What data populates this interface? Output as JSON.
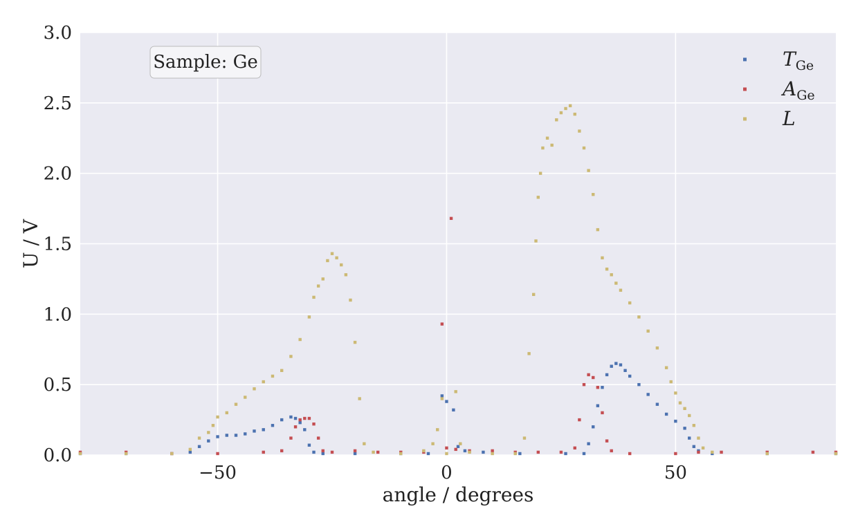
{
  "chart_data": {
    "type": "scatter",
    "title": "",
    "xlabel": "angle / degrees",
    "ylabel": "U / V",
    "xlim": [
      -80,
      85
    ],
    "ylim": [
      0,
      3.0
    ],
    "xticks": [
      -50,
      0,
      50
    ],
    "xtick_labels": [
      "−50",
      "0",
      "50"
    ],
    "yticks": [
      0,
      0.5,
      1.0,
      1.5,
      2.0,
      2.5,
      3.0
    ],
    "ytick_labels": [
      "0.0",
      "0.5",
      "1.0",
      "1.5",
      "2.0",
      "2.5",
      "3.0"
    ],
    "grid": true,
    "background": "#eaeaf2",
    "legend_position": "top-right",
    "annotation": "Sample: Ge",
    "series": [
      {
        "name": "T_Ge",
        "label_main": "T",
        "label_sub": "Ge",
        "color": "#4c72b0",
        "points": [
          [
            -80,
            0.01
          ],
          [
            -70,
            0.01
          ],
          [
            -60,
            0.01
          ],
          [
            -56,
            0.02
          ],
          [
            -54,
            0.06
          ],
          [
            -52,
            0.1
          ],
          [
            -50,
            0.13
          ],
          [
            -48,
            0.14
          ],
          [
            -46,
            0.14
          ],
          [
            -44,
            0.15
          ],
          [
            -42,
            0.17
          ],
          [
            -40,
            0.18
          ],
          [
            -38,
            0.21
          ],
          [
            -36,
            0.25
          ],
          [
            -34,
            0.27
          ],
          [
            -33,
            0.26
          ],
          [
            -32,
            0.23
          ],
          [
            -31,
            0.18
          ],
          [
            -30,
            0.07
          ],
          [
            -29,
            0.02
          ],
          [
            -27,
            0.01
          ],
          [
            -20,
            0.01
          ],
          [
            -10,
            0.01
          ],
          [
            -4,
            0.01
          ],
          [
            -1,
            0.42
          ],
          [
            0,
            0.38
          ],
          [
            1.5,
            0.32
          ],
          [
            2.5,
            0.06
          ],
          [
            4,
            0.03
          ],
          [
            8,
            0.02
          ],
          [
            16,
            0.01
          ],
          [
            26,
            0.01
          ],
          [
            30,
            0.01
          ],
          [
            31,
            0.08
          ],
          [
            32,
            0.2
          ],
          [
            33,
            0.35
          ],
          [
            34,
            0.48
          ],
          [
            35,
            0.57
          ],
          [
            36,
            0.63
          ],
          [
            37,
            0.65
          ],
          [
            38,
            0.64
          ],
          [
            39,
            0.6
          ],
          [
            40,
            0.56
          ],
          [
            42,
            0.5
          ],
          [
            44,
            0.43
          ],
          [
            46,
            0.36
          ],
          [
            48,
            0.29
          ],
          [
            50,
            0.24
          ],
          [
            52,
            0.19
          ],
          [
            53,
            0.12
          ],
          [
            54,
            0.06
          ],
          [
            55,
            0.03
          ],
          [
            58,
            0.01
          ],
          [
            70,
            0.01
          ],
          [
            85,
            0.01
          ]
        ]
      },
      {
        "name": "A_Ge",
        "label_main": "A",
        "label_sub": "Ge",
        "color": "#c44e52",
        "points": [
          [
            -80,
            0.02
          ],
          [
            -70,
            0.02
          ],
          [
            -60,
            0.01
          ],
          [
            -50,
            0.01
          ],
          [
            -40,
            0.02
          ],
          [
            -36,
            0.03
          ],
          [
            -34,
            0.12
          ],
          [
            -33,
            0.2
          ],
          [
            -32,
            0.25
          ],
          [
            -31,
            0.26
          ],
          [
            -30,
            0.26
          ],
          [
            -29,
            0.22
          ],
          [
            -28,
            0.12
          ],
          [
            -27,
            0.03
          ],
          [
            -25,
            0.02
          ],
          [
            -20,
            0.03
          ],
          [
            -15,
            0.02
          ],
          [
            -10,
            0.02
          ],
          [
            -5,
            0.02
          ],
          [
            -1,
            0.93
          ],
          [
            0,
            0.05
          ],
          [
            1,
            1.68
          ],
          [
            2,
            0.04
          ],
          [
            5,
            0.03
          ],
          [
            10,
            0.03
          ],
          [
            15,
            0.02
          ],
          [
            20,
            0.02
          ],
          [
            25,
            0.02
          ],
          [
            28,
            0.05
          ],
          [
            29,
            0.25
          ],
          [
            30,
            0.5
          ],
          [
            31,
            0.57
          ],
          [
            32,
            0.55
          ],
          [
            33,
            0.48
          ],
          [
            34,
            0.3
          ],
          [
            35,
            0.1
          ],
          [
            36,
            0.03
          ],
          [
            40,
            0.01
          ],
          [
            50,
            0.01
          ],
          [
            55,
            0.02
          ],
          [
            60,
            0.02
          ],
          [
            70,
            0.02
          ],
          [
            80,
            0.02
          ],
          [
            85,
            0.02
          ]
        ]
      },
      {
        "name": "L",
        "label_main": "L",
        "label_sub": "",
        "color": "#ccb974",
        "points": [
          [
            -80,
            0.01
          ],
          [
            -70,
            0.01
          ],
          [
            -60,
            0.01
          ],
          [
            -56,
            0.04
          ],
          [
            -54,
            0.12
          ],
          [
            -52,
            0.16
          ],
          [
            -51,
            0.21
          ],
          [
            -50,
            0.27
          ],
          [
            -48,
            0.3
          ],
          [
            -46,
            0.36
          ],
          [
            -44,
            0.41
          ],
          [
            -42,
            0.47
          ],
          [
            -40,
            0.52
          ],
          [
            -38,
            0.56
          ],
          [
            -36,
            0.6
          ],
          [
            -34,
            0.7
          ],
          [
            -32,
            0.82
          ],
          [
            -30,
            0.98
          ],
          [
            -29,
            1.12
          ],
          [
            -28,
            1.2
          ],
          [
            -27,
            1.25
          ],
          [
            -26,
            1.38
          ],
          [
            -25,
            1.43
          ],
          [
            -24,
            1.4
          ],
          [
            -23,
            1.35
          ],
          [
            -22,
            1.28
          ],
          [
            -21,
            1.1
          ],
          [
            -20,
            0.8
          ],
          [
            -19,
            0.4
          ],
          [
            -18,
            0.08
          ],
          [
            -16,
            0.02
          ],
          [
            -10,
            0.01
          ],
          [
            -5,
            0.03
          ],
          [
            -3,
            0.08
          ],
          [
            -2,
            0.18
          ],
          [
            -1,
            0.4
          ],
          [
            0,
            0.01
          ],
          [
            2,
            0.45
          ],
          [
            3,
            0.08
          ],
          [
            5,
            0.02
          ],
          [
            10,
            0.01
          ],
          [
            15,
            0.01
          ],
          [
            17,
            0.12
          ],
          [
            18,
            0.72
          ],
          [
            19,
            1.14
          ],
          [
            19.5,
            1.52
          ],
          [
            20,
            1.83
          ],
          [
            20.5,
            2.0
          ],
          [
            21,
            2.18
          ],
          [
            22,
            2.25
          ],
          [
            23,
            2.2
          ],
          [
            24,
            2.38
          ],
          [
            25,
            2.43
          ],
          [
            26,
            2.46
          ],
          [
            27,
            2.48
          ],
          [
            28,
            2.42
          ],
          [
            29,
            2.3
          ],
          [
            30,
            2.18
          ],
          [
            31,
            2.02
          ],
          [
            32,
            1.85
          ],
          [
            33,
            1.6
          ],
          [
            34,
            1.4
          ],
          [
            35,
            1.32
          ],
          [
            36,
            1.28
          ],
          [
            37,
            1.22
          ],
          [
            38,
            1.17
          ],
          [
            40,
            1.08
          ],
          [
            42,
            0.98
          ],
          [
            44,
            0.88
          ],
          [
            46,
            0.76
          ],
          [
            48,
            0.62
          ],
          [
            49,
            0.52
          ],
          [
            50,
            0.44
          ],
          [
            51,
            0.37
          ],
          [
            52,
            0.33
          ],
          [
            53,
            0.28
          ],
          [
            54,
            0.21
          ],
          [
            55,
            0.12
          ],
          [
            56,
            0.05
          ],
          [
            58,
            0.02
          ],
          [
            70,
            0.01
          ],
          [
            85,
            0.01
          ]
        ]
      }
    ]
  }
}
